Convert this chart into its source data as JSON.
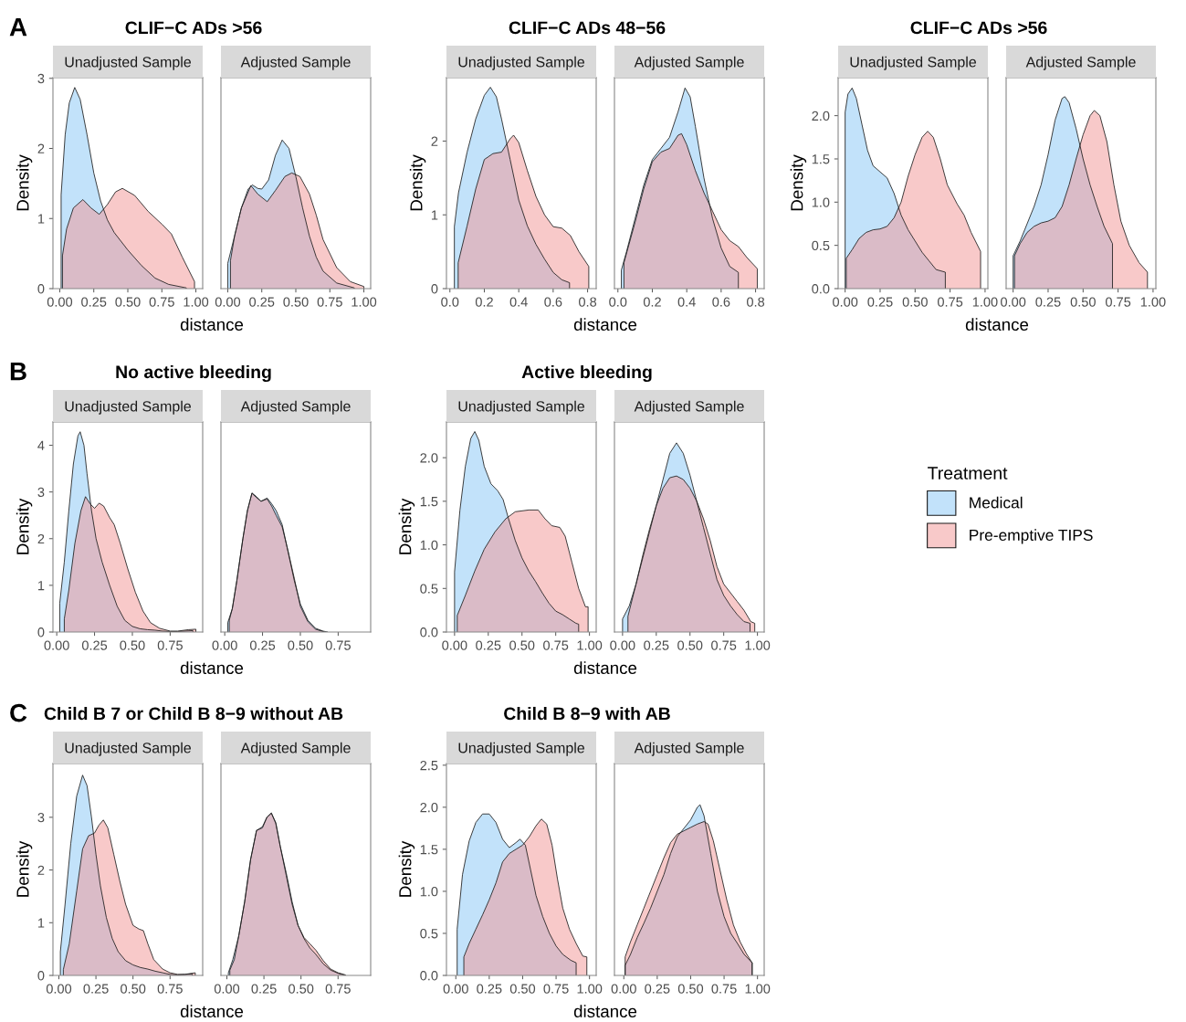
{
  "chart_data": [
    {
      "type": "area",
      "title": "CLIF−C ADs >56",
      "subtitle": "Unadjusted Sample",
      "xlabel": "distance",
      "ylabel": "Density",
      "annotations": [
        "A"
      ],
      "xlim": [
        -0.05,
        1.05
      ],
      "ylim": [
        0,
        3.01
      ],
      "xticks": [
        {
          "value": 0,
          "label": "0.00"
        },
        {
          "value": 0.25,
          "label": "0.25"
        },
        {
          "value": 0.5,
          "label": "0.50"
        },
        {
          "value": 0.75,
          "label": "0.75"
        },
        {
          "value": 1,
          "label": "1.00"
        }
      ],
      "yticks": [
        0,
        1,
        2,
        3
      ],
      "series": [
        {
          "color": "#c2e2fa",
          "x": [
            0.01,
            0.04,
            0.07,
            0.11,
            0.15,
            0.2,
            0.25,
            0.3,
            0.35,
            0.4,
            0.5,
            0.6,
            0.7,
            0.8,
            0.93
          ],
          "values": [
            1.34,
            2.2,
            2.65,
            2.87,
            2.7,
            2.2,
            1.65,
            1.25,
            0.98,
            0.8,
            0.55,
            0.33,
            0.15,
            0.06,
            0.01
          ]
        },
        {
          "color": "#f8c9c9",
          "x": [
            0.02,
            0.05,
            0.1,
            0.17,
            0.23,
            0.29,
            0.35,
            0.41,
            0.46,
            0.55,
            0.65,
            0.75,
            0.82,
            0.9,
            0.99
          ],
          "values": [
            0.47,
            0.85,
            1.15,
            1.27,
            1.15,
            1.06,
            1.2,
            1.38,
            1.43,
            1.33,
            1.1,
            0.92,
            0.78,
            0.45,
            0.1
          ]
        }
      ]
    },
    {
      "type": "area",
      "subtitle": "Adjusted Sample",
      "tick_labels": "x",
      "xlim": [
        -0.05,
        1.05
      ],
      "ylim": [
        0,
        3.01
      ],
      "xticks": [
        {
          "value": 0,
          "label": "0.00"
        },
        {
          "value": 0.25,
          "label": "0.25"
        },
        {
          "value": 0.5,
          "label": "0.50"
        },
        {
          "value": 0.75,
          "label": "0.75"
        },
        {
          "value": 1,
          "label": "1.00"
        }
      ],
      "series": [
        {
          "color": "#c2e2fa",
          "x": [
            0.0,
            0.05,
            0.1,
            0.15,
            0.18,
            0.22,
            0.25,
            0.3,
            0.35,
            0.4,
            0.45,
            0.5,
            0.55,
            0.6,
            0.65,
            0.7,
            0.8,
            0.93
          ],
          "values": [
            0.36,
            0.75,
            1.15,
            1.42,
            1.48,
            1.43,
            1.42,
            1.55,
            1.9,
            2.12,
            2.0,
            1.6,
            1.15,
            0.75,
            0.45,
            0.25,
            0.08,
            0.01
          ]
        },
        {
          "color": "#f8c9c9",
          "x": [
            0.02,
            0.05,
            0.1,
            0.17,
            0.22,
            0.29,
            0.35,
            0.42,
            0.47,
            0.53,
            0.6,
            0.65,
            0.7,
            0.8,
            0.9,
            1.0
          ],
          "values": [
            0.4,
            0.75,
            1.15,
            1.47,
            1.35,
            1.24,
            1.4,
            1.6,
            1.65,
            1.6,
            1.35,
            1.05,
            0.7,
            0.3,
            0.1,
            0.03
          ]
        }
      ]
    },
    {
      "type": "area",
      "title": "CLIF−C ADs 48−56",
      "subtitle": "Unadjusted Sample",
      "xlabel": "distance",
      "ylabel": "Density",
      "xlim": [
        -0.02,
        0.85
      ],
      "ylim": [
        0,
        2.86
      ],
      "xticks": [
        {
          "value": 0,
          "label": "0.0"
        },
        0.2,
        0.4,
        0.6,
        0.8
      ],
      "yticks": [
        0,
        1,
        2
      ],
      "series": [
        {
          "color": "#c2e2fa",
          "x": [
            0.026,
            0.05,
            0.1,
            0.15,
            0.2,
            0.235,
            0.27,
            0.3,
            0.35,
            0.4,
            0.45,
            0.5,
            0.55,
            0.6,
            0.65,
            0.695
          ],
          "values": [
            0.84,
            1.3,
            1.85,
            2.3,
            2.62,
            2.73,
            2.6,
            2.3,
            1.75,
            1.2,
            0.85,
            0.6,
            0.4,
            0.22,
            0.12,
            0.08
          ]
        },
        {
          "color": "#f8c9c9",
          "x": [
            0.048,
            0.1,
            0.15,
            0.2,
            0.25,
            0.3,
            0.35,
            0.37,
            0.4,
            0.45,
            0.5,
            0.55,
            0.6,
            0.65,
            0.7,
            0.75,
            0.807
          ],
          "values": [
            0.35,
            0.85,
            1.35,
            1.75,
            1.83,
            1.85,
            2.03,
            2.08,
            1.98,
            1.6,
            1.25,
            1.0,
            0.84,
            0.82,
            0.72,
            0.5,
            0.3
          ]
        }
      ]
    },
    {
      "type": "area",
      "subtitle": "Adjusted Sample",
      "tick_labels": "x",
      "xlim": [
        -0.02,
        0.85
      ],
      "ylim": [
        0,
        2.86
      ],
      "xticks": [
        {
          "value": 0,
          "label": "0.0"
        },
        0.2,
        0.4,
        0.6,
        0.8
      ],
      "series": [
        {
          "color": "#c2e2fa",
          "x": [
            0.02,
            0.05,
            0.1,
            0.15,
            0.2,
            0.25,
            0.3,
            0.35,
            0.39,
            0.42,
            0.45,
            0.5,
            0.55,
            0.6,
            0.65,
            0.7
          ],
          "values": [
            0.25,
            0.5,
            0.95,
            1.4,
            1.75,
            1.9,
            2.05,
            2.4,
            2.72,
            2.6,
            2.2,
            1.5,
            0.95,
            0.55,
            0.3,
            0.22
          ]
        },
        {
          "color": "#f8c9c9",
          "x": [
            0.035,
            0.1,
            0.15,
            0.2,
            0.25,
            0.3,
            0.35,
            0.37,
            0.4,
            0.45,
            0.5,
            0.55,
            0.6,
            0.65,
            0.7,
            0.75,
            0.81
          ],
          "values": [
            0.35,
            0.9,
            1.35,
            1.72,
            1.85,
            1.9,
            2.08,
            2.1,
            1.95,
            1.6,
            1.3,
            1.05,
            0.8,
            0.65,
            0.57,
            0.42,
            0.27
          ]
        }
      ]
    },
    {
      "type": "area",
      "title": "CLIF−C ADs >56",
      "subtitle": "Unadjusted Sample",
      "xlabel": "distance",
      "ylabel": "Density",
      "xlim": [
        -0.05,
        1.02
      ],
      "ylim": [
        0,
        2.44
      ],
      "xticks": [
        {
          "value": 0,
          "label": "0.00"
        },
        {
          "value": 0.25,
          "label": "0.25"
        },
        {
          "value": 0.5,
          "label": "0.50"
        },
        {
          "value": 0.75,
          "label": "0.75"
        },
        {
          "value": 1,
          "label": "1.00"
        }
      ],
      "yticks": [
        {
          "value": 0,
          "label": "0.0"
        },
        0.5,
        {
          "value": 1,
          "label": "1.0"
        },
        1.5,
        {
          "value": 2,
          "label": "2.0"
        }
      ],
      "series": [
        {
          "color": "#c2e2fa",
          "x": [
            0.0,
            0.02,
            0.05,
            0.08,
            0.12,
            0.16,
            0.2,
            0.25,
            0.3,
            0.35,
            0.4,
            0.45,
            0.5,
            0.55,
            0.6,
            0.65,
            0.716
          ],
          "values": [
            2.04,
            2.25,
            2.32,
            2.2,
            1.9,
            1.6,
            1.42,
            1.35,
            1.28,
            1.1,
            0.85,
            0.68,
            0.55,
            0.42,
            0.32,
            0.22,
            0.19
          ]
        },
        {
          "color": "#f8c9c9",
          "x": [
            0.008,
            0.05,
            0.1,
            0.15,
            0.2,
            0.25,
            0.3,
            0.35,
            0.4,
            0.45,
            0.5,
            0.55,
            0.59,
            0.63,
            0.68,
            0.73,
            0.8,
            0.85,
            0.9,
            0.968
          ],
          "values": [
            0.35,
            0.45,
            0.58,
            0.65,
            0.68,
            0.69,
            0.72,
            0.82,
            1.0,
            1.3,
            1.55,
            1.75,
            1.82,
            1.75,
            1.5,
            1.2,
            0.98,
            0.85,
            0.65,
            0.43
          ]
        }
      ]
    },
    {
      "type": "area",
      "subtitle": "Adjusted Sample",
      "tick_labels": "x",
      "xlim": [
        -0.05,
        1.02
      ],
      "ylim": [
        0,
        2.44
      ],
      "xticks": [
        {
          "value": 0,
          "label": "0.00"
        },
        {
          "value": 0.25,
          "label": "0.25"
        },
        {
          "value": 0.5,
          "label": "0.50"
        },
        {
          "value": 0.75,
          "label": "0.75"
        },
        {
          "value": 1,
          "label": "1.00"
        }
      ],
      "series": [
        {
          "color": "#c2e2fa",
          "x": [
            0.0,
            0.05,
            0.1,
            0.15,
            0.2,
            0.25,
            0.3,
            0.35,
            0.37,
            0.4,
            0.45,
            0.5,
            0.55,
            0.6,
            0.65,
            0.71
          ],
          "values": [
            0.38,
            0.55,
            0.75,
            0.95,
            1.2,
            1.55,
            1.95,
            2.2,
            2.22,
            2.15,
            1.85,
            1.5,
            1.2,
            0.95,
            0.72,
            0.52
          ]
        },
        {
          "color": "#f8c9c9",
          "x": [
            0.01,
            0.05,
            0.1,
            0.15,
            0.2,
            0.25,
            0.3,
            0.35,
            0.4,
            0.45,
            0.5,
            0.55,
            0.58,
            0.62,
            0.67,
            0.72,
            0.77,
            0.83,
            0.9,
            0.96
          ],
          "values": [
            0.38,
            0.52,
            0.65,
            0.72,
            0.76,
            0.78,
            0.82,
            0.95,
            1.2,
            1.5,
            1.78,
            2.0,
            2.06,
            2.0,
            1.7,
            1.2,
            0.78,
            0.5,
            0.3,
            0.19
          ]
        }
      ]
    },
    {
      "type": "area",
      "title": "No active bleeding",
      "subtitle": "Unadjusted Sample",
      "xlabel": "distance",
      "ylabel": "Density",
      "annotations": [
        "B"
      ],
      "xlim": [
        -0.025,
        0.965
      ],
      "ylim": [
        0,
        4.5
      ],
      "xticks": [
        {
          "value": 0,
          "label": "0.00"
        },
        {
          "value": 0.25,
          "label": "0.25"
        },
        {
          "value": 0.5,
          "label": "0.50"
        },
        {
          "value": 0.75,
          "label": "0.75"
        }
      ],
      "yticks": [
        0,
        1,
        2,
        3,
        4
      ],
      "series": [
        {
          "color": "#c2e2fa",
          "x": [
            0.02,
            0.05,
            0.08,
            0.11,
            0.14,
            0.155,
            0.18,
            0.2,
            0.23,
            0.26,
            0.3,
            0.35,
            0.4,
            0.45,
            0.5,
            0.55,
            0.6,
            0.65,
            0.7,
            0.75,
            0.8,
            0.85,
            0.9
          ],
          "values": [
            0.62,
            1.5,
            2.6,
            3.6,
            4.2,
            4.29,
            4.0,
            3.4,
            2.6,
            2.0,
            1.5,
            1.0,
            0.55,
            0.25,
            0.12,
            0.07,
            0.05,
            0.04,
            0.02,
            0.01,
            0.01,
            0.02,
            0.03
          ]
        },
        {
          "color": "#f8c9c9",
          "x": [
            0.05,
            0.08,
            0.12,
            0.16,
            0.19,
            0.22,
            0.25,
            0.28,
            0.31,
            0.35,
            0.38,
            0.42,
            0.47,
            0.52,
            0.57,
            0.62,
            0.68,
            0.75,
            0.8,
            0.87,
            0.92
          ],
          "values": [
            0.28,
            0.9,
            1.9,
            2.6,
            2.9,
            2.75,
            2.65,
            2.76,
            2.7,
            2.45,
            2.3,
            1.9,
            1.35,
            0.85,
            0.45,
            0.2,
            0.08,
            0.02,
            0.02,
            0.05,
            0.06
          ]
        }
      ]
    },
    {
      "type": "area",
      "subtitle": "Adjusted Sample",
      "tick_labels": "x",
      "xlim": [
        -0.025,
        0.965
      ],
      "ylim": [
        0,
        4.5
      ],
      "xticks": [
        {
          "value": 0,
          "label": "0.00"
        },
        {
          "value": 0.25,
          "label": "0.25"
        },
        {
          "value": 0.5,
          "label": "0.50"
        },
        {
          "value": 0.75,
          "label": "0.75"
        }
      ],
      "series": [
        {
          "color": "#c2e2fa",
          "x": [
            0.02,
            0.05,
            0.08,
            0.12,
            0.15,
            0.18,
            0.21,
            0.24,
            0.28,
            0.31,
            0.34,
            0.38,
            0.42,
            0.46,
            0.5,
            0.55,
            0.6,
            0.65,
            0.68
          ],
          "values": [
            0.2,
            0.5,
            1.1,
            2.0,
            2.6,
            2.98,
            2.9,
            2.8,
            2.87,
            2.75,
            2.6,
            2.3,
            1.7,
            1.1,
            0.6,
            0.25,
            0.08,
            0.02,
            0.0
          ]
        },
        {
          "color": "#f8c9c9",
          "x": [
            0.03,
            0.05,
            0.08,
            0.12,
            0.15,
            0.18,
            0.21,
            0.24,
            0.28,
            0.31,
            0.34,
            0.38,
            0.42,
            0.46,
            0.5,
            0.55,
            0.6,
            0.66
          ],
          "values": [
            0.25,
            0.5,
            1.1,
            2.0,
            2.6,
            2.97,
            2.88,
            2.8,
            2.85,
            2.7,
            2.5,
            2.25,
            1.72,
            1.15,
            0.55,
            0.22,
            0.06,
            0.0
          ]
        }
      ]
    },
    {
      "type": "area",
      "title": "Active bleeding",
      "subtitle": "Unadjusted Sample",
      "xlabel": "distance",
      "ylabel": "Density",
      "xlim": [
        -0.06,
        1.05
      ],
      "ylim": [
        0,
        2.41
      ],
      "xticks": [
        {
          "value": 0,
          "label": "0.00"
        },
        {
          "value": 0.25,
          "label": "0.25"
        },
        {
          "value": 0.5,
          "label": "0.50"
        },
        {
          "value": 0.75,
          "label": "0.75"
        },
        {
          "value": 1,
          "label": "1.00"
        }
      ],
      "yticks": [
        {
          "value": 0,
          "label": "0.0"
        },
        0.5,
        {
          "value": 1,
          "label": "1.0"
        },
        1.5,
        {
          "value": 2,
          "label": "2.0"
        }
      ],
      "series": [
        {
          "color": "#c2e2fa",
          "x": [
            0.0,
            0.04,
            0.08,
            0.12,
            0.15,
            0.18,
            0.22,
            0.27,
            0.32,
            0.36,
            0.4,
            0.45,
            0.5,
            0.55,
            0.6,
            0.65,
            0.7,
            0.75,
            0.8,
            0.85,
            0.9,
            0.92
          ],
          "values": [
            0.69,
            1.4,
            1.9,
            2.22,
            2.3,
            2.2,
            1.9,
            1.7,
            1.62,
            1.52,
            1.3,
            1.05,
            0.85,
            0.7,
            0.58,
            0.45,
            0.33,
            0.24,
            0.2,
            0.15,
            0.1,
            0.09
          ]
        },
        {
          "color": "#f8c9c9",
          "x": [
            0.02,
            0.08,
            0.15,
            0.22,
            0.3,
            0.38,
            0.45,
            0.55,
            0.62,
            0.67,
            0.72,
            0.78,
            0.82,
            0.87,
            0.92,
            0.97,
            0.99
          ],
          "values": [
            0.19,
            0.42,
            0.7,
            0.95,
            1.15,
            1.3,
            1.38,
            1.4,
            1.4,
            1.3,
            1.22,
            1.2,
            1.1,
            0.8,
            0.5,
            0.29,
            0.29
          ]
        }
      ]
    },
    {
      "type": "area",
      "subtitle": "Adjusted Sample",
      "tick_labels": "x",
      "legend": "right",
      "legend_title": "Treatment",
      "xlim": [
        -0.06,
        1.05
      ],
      "ylim": [
        0,
        2.41
      ],
      "xticks": [
        {
          "value": 0,
          "label": "0.00"
        },
        {
          "value": 0.25,
          "label": "0.25"
        },
        {
          "value": 0.5,
          "label": "0.50"
        },
        {
          "value": 0.75,
          "label": "0.75"
        },
        {
          "value": 1,
          "label": "1.00"
        }
      ],
      "series": [
        {
          "name": "Medical",
          "color": "#c2e2fa",
          "x": [
            0.0,
            0.05,
            0.1,
            0.15,
            0.2,
            0.25,
            0.3,
            0.35,
            0.4,
            0.45,
            0.5,
            0.55,
            0.6,
            0.65,
            0.7,
            0.75,
            0.8,
            0.85,
            0.9,
            0.945
          ],
          "values": [
            0.15,
            0.3,
            0.55,
            0.85,
            1.15,
            1.45,
            1.75,
            2.05,
            2.17,
            2.05,
            1.8,
            1.5,
            1.2,
            0.9,
            0.6,
            0.42,
            0.3,
            0.2,
            0.12,
            0.1
          ]
        },
        {
          "name": "Pre-emptive TIPS",
          "color": "#f8c9c9",
          "x": [
            0.04,
            0.1,
            0.15,
            0.2,
            0.25,
            0.3,
            0.35,
            0.4,
            0.45,
            0.5,
            0.55,
            0.6,
            0.65,
            0.7,
            0.75,
            0.8,
            0.85,
            0.9,
            0.95,
            0.98
          ],
          "values": [
            0.18,
            0.55,
            0.88,
            1.18,
            1.45,
            1.65,
            1.77,
            1.79,
            1.75,
            1.65,
            1.5,
            1.3,
            1.05,
            0.75,
            0.55,
            0.45,
            0.35,
            0.25,
            0.12,
            0.1
          ]
        }
      ]
    },
    {
      "type": "area",
      "title": "Child B 7 or Child B 8−9 without AB",
      "subtitle": "Unadjusted Sample",
      "xlabel": "distance",
      "ylabel": "Density",
      "annotations": [
        "C"
      ],
      "xlim": [
        -0.04,
        0.97
      ],
      "ylim": [
        0,
        4.02
      ],
      "xticks": [
        {
          "value": 0,
          "label": "0.00"
        },
        {
          "value": 0.25,
          "label": "0.25"
        },
        {
          "value": 0.5,
          "label": "0.50"
        },
        {
          "value": 0.75,
          "label": "0.75"
        }
      ],
      "yticks": [
        0,
        1,
        2,
        3
      ],
      "series": [
        {
          "color": "#c2e2fa",
          "x": [
            0.01,
            0.04,
            0.08,
            0.12,
            0.16,
            0.19,
            0.22,
            0.25,
            0.28,
            0.32,
            0.36,
            0.4,
            0.45,
            0.5,
            0.55,
            0.6,
            0.65,
            0.7,
            0.75,
            0.8,
            0.85,
            0.9
          ],
          "values": [
            0.45,
            1.3,
            2.5,
            3.4,
            3.8,
            3.6,
            3.0,
            2.3,
            1.7,
            1.1,
            0.7,
            0.45,
            0.28,
            0.2,
            0.15,
            0.12,
            0.08,
            0.05,
            0.02,
            0.01,
            0.02,
            0.03
          ]
        },
        {
          "color": "#f8c9c9",
          "x": [
            0.03,
            0.07,
            0.12,
            0.16,
            0.2,
            0.24,
            0.27,
            0.3,
            0.33,
            0.37,
            0.41,
            0.45,
            0.5,
            0.54,
            0.57,
            0.6,
            0.64,
            0.7,
            0.75,
            0.8,
            0.85,
            0.92
          ],
          "values": [
            0.11,
            0.6,
            1.6,
            2.4,
            2.65,
            2.7,
            2.85,
            2.95,
            2.8,
            2.3,
            1.8,
            1.35,
            0.95,
            0.88,
            0.85,
            0.6,
            0.3,
            0.12,
            0.05,
            0.02,
            0.02,
            0.05
          ]
        }
      ]
    },
    {
      "type": "area",
      "subtitle": "Adjusted Sample",
      "tick_labels": "x",
      "xlim": [
        -0.04,
        0.97
      ],
      "ylim": [
        0,
        4.02
      ],
      "xticks": [
        {
          "value": 0,
          "label": "0.00"
        },
        {
          "value": 0.25,
          "label": "0.25"
        },
        {
          "value": 0.5,
          "label": "0.50"
        },
        {
          "value": 0.75,
          "label": "0.75"
        }
      ],
      "series": [
        {
          "color": "#c2e2fa",
          "x": [
            0.01,
            0.04,
            0.08,
            0.12,
            0.16,
            0.2,
            0.24,
            0.27,
            0.3,
            0.33,
            0.36,
            0.4,
            0.44,
            0.48,
            0.52,
            0.56,
            0.6,
            0.65,
            0.7,
            0.75,
            0.8
          ],
          "values": [
            0.05,
            0.3,
            0.75,
            1.4,
            2.2,
            2.75,
            2.82,
            3.0,
            3.08,
            2.9,
            2.45,
            1.95,
            1.4,
            0.95,
            0.7,
            0.52,
            0.4,
            0.22,
            0.1,
            0.04,
            0.0
          ]
        },
        {
          "color": "#f8c9c9",
          "x": [
            0.02,
            0.05,
            0.08,
            0.12,
            0.16,
            0.2,
            0.24,
            0.27,
            0.3,
            0.33,
            0.36,
            0.4,
            0.44,
            0.48,
            0.52,
            0.56,
            0.6,
            0.65,
            0.7,
            0.75,
            0.8
          ],
          "values": [
            0.1,
            0.3,
            0.75,
            1.4,
            2.2,
            2.75,
            2.8,
            3.0,
            3.08,
            2.88,
            2.45,
            1.9,
            1.35,
            0.95,
            0.72,
            0.6,
            0.48,
            0.28,
            0.12,
            0.05,
            0.01
          ]
        }
      ]
    },
    {
      "type": "area",
      "title": "Child B 8−9 with AB",
      "subtitle": "Unadjusted Sample",
      "xlabel": "distance",
      "ylabel": "Density",
      "xlim": [
        -0.07,
        1.05
      ],
      "ylim": [
        0,
        2.52
      ],
      "xticks": [
        {
          "value": 0,
          "label": "0.00"
        },
        {
          "value": 0.25,
          "label": "0.25"
        },
        {
          "value": 0.5,
          "label": "0.50"
        },
        {
          "value": 0.75,
          "label": "0.75"
        },
        {
          "value": 1,
          "label": "1.00"
        }
      ],
      "yticks": [
        {
          "value": 0,
          "label": "0.0"
        },
        0.5,
        {
          "value": 1,
          "label": "1.0"
        },
        1.5,
        {
          "value": 2,
          "label": "2.0"
        },
        2.5
      ],
      "series": [
        {
          "color": "#c2e2fa",
          "x": [
            0.01,
            0.05,
            0.1,
            0.15,
            0.2,
            0.25,
            0.3,
            0.35,
            0.4,
            0.45,
            0.48,
            0.52,
            0.56,
            0.6,
            0.65,
            0.7,
            0.75,
            0.8,
            0.86,
            0.9
          ],
          "values": [
            0.55,
            1.2,
            1.6,
            1.82,
            1.92,
            1.92,
            1.82,
            1.62,
            1.52,
            1.58,
            1.62,
            1.55,
            1.25,
            0.95,
            0.7,
            0.5,
            0.35,
            0.25,
            0.18,
            0.15
          ]
        },
        {
          "color": "#f8c9c9",
          "x": [
            0.06,
            0.1,
            0.15,
            0.2,
            0.25,
            0.3,
            0.35,
            0.4,
            0.45,
            0.5,
            0.55,
            0.6,
            0.64,
            0.68,
            0.72,
            0.76,
            0.8,
            0.85,
            0.9,
            0.95,
            0.98
          ],
          "values": [
            0.22,
            0.38,
            0.55,
            0.72,
            0.9,
            1.1,
            1.35,
            1.45,
            1.5,
            1.55,
            1.65,
            1.78,
            1.86,
            1.8,
            1.55,
            1.15,
            0.8,
            0.55,
            0.38,
            0.23,
            0.22
          ]
        }
      ]
    },
    {
      "type": "area",
      "subtitle": "Adjusted Sample",
      "tick_labels": "x",
      "xlim": [
        -0.07,
        1.05
      ],
      "ylim": [
        0,
        2.52
      ],
      "xticks": [
        {
          "value": 0,
          "label": "0.00"
        },
        {
          "value": 0.25,
          "label": "0.25"
        },
        {
          "value": 0.5,
          "label": "0.50"
        },
        {
          "value": 0.75,
          "label": "0.75"
        },
        {
          "value": 1,
          "label": "1.00"
        }
      ],
      "series": [
        {
          "color": "#c2e2fa",
          "x": [
            0.01,
            0.05,
            0.1,
            0.15,
            0.2,
            0.25,
            0.3,
            0.35,
            0.4,
            0.45,
            0.5,
            0.55,
            0.57,
            0.6,
            0.65,
            0.7,
            0.75,
            0.8,
            0.85,
            0.9,
            0.96
          ],
          "values": [
            0.12,
            0.25,
            0.45,
            0.62,
            0.8,
            1.0,
            1.2,
            1.45,
            1.65,
            1.75,
            1.85,
            2.0,
            2.03,
            1.9,
            1.45,
            1.0,
            0.7,
            0.5,
            0.38,
            0.25,
            0.15
          ]
        },
        {
          "color": "#f8c9c9",
          "x": [
            0.01,
            0.05,
            0.1,
            0.15,
            0.2,
            0.25,
            0.3,
            0.35,
            0.4,
            0.45,
            0.5,
            0.55,
            0.6,
            0.63,
            0.67,
            0.72,
            0.77,
            0.82,
            0.87,
            0.92,
            0.96
          ],
          "values": [
            0.22,
            0.4,
            0.6,
            0.8,
            1.0,
            1.2,
            1.4,
            1.58,
            1.68,
            1.72,
            1.76,
            1.8,
            1.83,
            1.8,
            1.6,
            1.25,
            0.9,
            0.6,
            0.4,
            0.25,
            0.15
          ]
        }
      ]
    }
  ]
}
